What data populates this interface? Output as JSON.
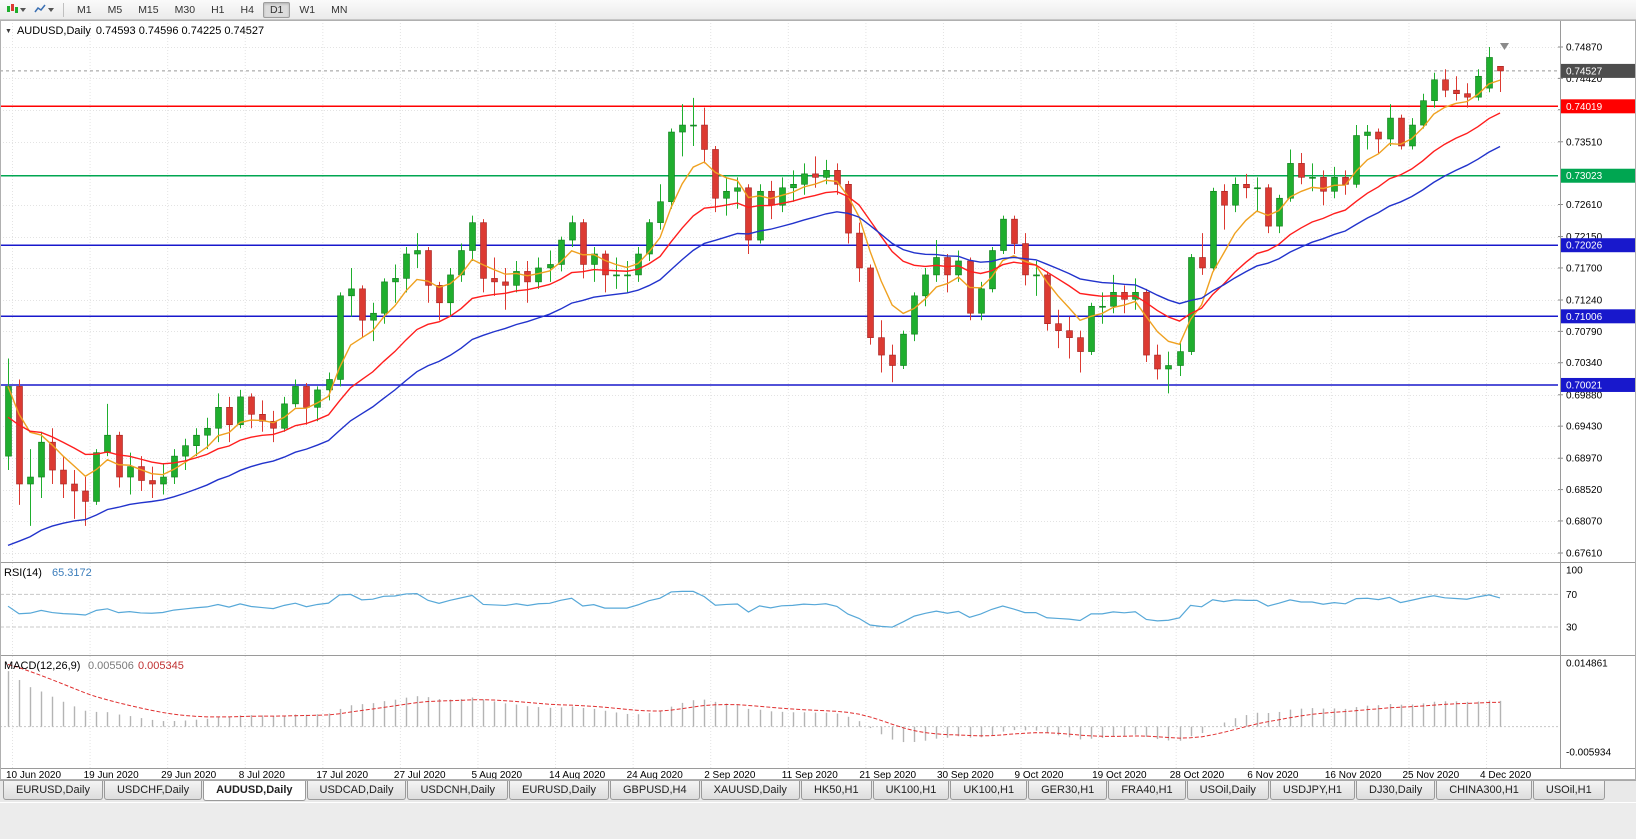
{
  "toolbar": {
    "timeframes": [
      "M1",
      "M5",
      "M15",
      "M30",
      "H1",
      "H4",
      "D1",
      "W1",
      "MN"
    ],
    "active_timeframe": "D1"
  },
  "chart": {
    "symbol_period": "AUDUSD,Daily",
    "ohlc": "0.74593 0.74596 0.74225 0.74527"
  },
  "indicators": {
    "rsi": {
      "name": "RSI(14)",
      "value": "65.3172"
    },
    "macd": {
      "name": "MACD(12,26,9)",
      "value_main": "0.005506",
      "value_signal": "0.005345"
    }
  },
  "tab_bar": {
    "active_index": 2,
    "tabs": [
      "EURUSD,Daily",
      "USDCHF,Daily",
      "AUDUSD,Daily",
      "USDCAD,Daily",
      "USDCNH,Daily",
      "EURUSD,Daily",
      "GBPUSD,H4",
      "XAUUSD,Daily",
      "HK50,H1",
      "UK100,H1",
      "UK100,H1",
      "GER30,H1",
      "FRA40,H1",
      "USOil,Daily",
      "USDJPY,H1",
      "DJ30,Daily",
      "CHINA300,H1",
      "USOil,H1"
    ]
  },
  "chart_data": {
    "type": "candlestick",
    "symbol": "AUDUSD",
    "timeframe": "Daily",
    "title": "AUDUSD,Daily 0.74593 0.74596 0.74225 0.74527",
    "y_axis_labels": [
      "0.74870",
      "0.74420",
      "0.73970",
      "0.73510",
      "0.72610",
      "0.72150",
      "0.71700",
      "0.71240",
      "0.70790",
      "0.70340",
      "0.69880",
      "0.69430",
      "0.68970",
      "0.68520",
      "0.68070",
      "0.67610"
    ],
    "x_labels": [
      "10 Jun 2020",
      "19 Jun 2020",
      "29 Jun 2020",
      "8 Jul 2020",
      "17 Jul 2020",
      "27 Jul 2020",
      "5 Aug 2020",
      "14 Aug 2020",
      "24 Aug 2020",
      "2 Sep 2020",
      "11 Sep 2020",
      "21 Sep 2020",
      "30 Sep 2020",
      "9 Oct 2020",
      "19 Oct 2020",
      "28 Oct 2020",
      "6 Nov 2020",
      "16 Nov 2020",
      "25 Nov 2020",
      "4 Dec 2020"
    ],
    "current_price": 0.74527,
    "current_price_label": "0.74527",
    "hlines": [
      {
        "value": 0.74019,
        "label": "0.74019",
        "color": "#ff0000"
      },
      {
        "value": 0.73023,
        "label": "0.73023",
        "color": "#00a651"
      },
      {
        "value": 0.72026,
        "label": "0.72026",
        "color": "#1818cc"
      },
      {
        "value": 0.71006,
        "label": "0.71006",
        "color": "#1818cc"
      },
      {
        "value": 0.70021,
        "label": "0.70021",
        "color": "#1818cc"
      }
    ],
    "colors": {
      "up": "#1fae2e",
      "up_border": "#0e7a1a",
      "down": "#dc3a32",
      "down_border": "#a02020",
      "current_box": "#4d4d4d",
      "grid": "#e3e3e3",
      "separator": "#9a9a9a"
    },
    "moving_averages": [
      {
        "period": 6,
        "color": "#efa120",
        "seed": 0.7
      },
      {
        "period": 16,
        "color": "#ff1e1e",
        "seed": 0.695
      },
      {
        "period": 28,
        "color": "#2233cc",
        "seed": 0.6755
      }
    ],
    "rsi": {
      "period": 14,
      "color": "#57a8d8",
      "scale_labels": [
        "100",
        "70",
        "30"
      ],
      "level_lines": [
        70,
        30
      ],
      "seed_gain": 0.003,
      "seed_loss": 0.0024
    },
    "macd": {
      "fast": 12,
      "slow": 26,
      "signal": 9,
      "hist_color": "#b4b4b4",
      "signal_color": "#e03030",
      "seed_fast": 0.7,
      "seed_slow": 0.686,
      "seed_signal": 0.0149,
      "scale_top": "0.014861",
      "scale_bottom": "-0.005934"
    },
    "candles": [
      [
        0.69,
        0.704,
        0.688,
        0.7
      ],
      [
        0.7,
        0.701,
        0.683,
        0.686
      ],
      [
        0.686,
        0.691,
        0.68,
        0.687
      ],
      [
        0.687,
        0.6935,
        0.684,
        0.692
      ],
      [
        0.692,
        0.694,
        0.686,
        0.688
      ],
      [
        0.688,
        0.69,
        0.684,
        0.686
      ],
      [
        0.686,
        0.688,
        0.681,
        0.685
      ],
      [
        0.685,
        0.687,
        0.68,
        0.6835
      ],
      [
        0.6835,
        0.691,
        0.683,
        0.6905
      ],
      [
        0.6905,
        0.6975,
        0.69,
        0.693
      ],
      [
        0.693,
        0.6935,
        0.6855,
        0.687
      ],
      [
        0.687,
        0.6905,
        0.6845,
        0.6885
      ],
      [
        0.6885,
        0.69,
        0.685,
        0.6865
      ],
      [
        0.6865,
        0.6885,
        0.684,
        0.686
      ],
      [
        0.686,
        0.689,
        0.6845,
        0.687
      ],
      [
        0.687,
        0.691,
        0.686,
        0.69
      ],
      [
        0.69,
        0.6925,
        0.688,
        0.6915
      ],
      [
        0.6915,
        0.694,
        0.69,
        0.693
      ],
      [
        0.693,
        0.6955,
        0.691,
        0.694
      ],
      [
        0.694,
        0.699,
        0.692,
        0.697
      ],
      [
        0.697,
        0.6985,
        0.692,
        0.6945
      ],
      [
        0.6945,
        0.6995,
        0.694,
        0.6985
      ],
      [
        0.6985,
        0.699,
        0.694,
        0.696
      ],
      [
        0.696,
        0.698,
        0.6935,
        0.695
      ],
      [
        0.695,
        0.6965,
        0.692,
        0.694
      ],
      [
        0.694,
        0.6985,
        0.6935,
        0.6975
      ],
      [
        0.6975,
        0.701,
        0.697,
        0.7
      ],
      [
        0.7,
        0.7005,
        0.6945,
        0.697
      ],
      [
        0.697,
        0.7,
        0.695,
        0.6995
      ],
      [
        0.6995,
        0.702,
        0.698,
        0.701
      ],
      [
        0.701,
        0.7135,
        0.7,
        0.713
      ],
      [
        0.713,
        0.717,
        0.71,
        0.714
      ],
      [
        0.714,
        0.7145,
        0.707,
        0.7095
      ],
      [
        0.7095,
        0.712,
        0.7065,
        0.7105
      ],
      [
        0.7105,
        0.7155,
        0.709,
        0.715
      ],
      [
        0.715,
        0.7175,
        0.712,
        0.7155
      ],
      [
        0.7155,
        0.72,
        0.7135,
        0.719
      ],
      [
        0.719,
        0.722,
        0.717,
        0.7195
      ],
      [
        0.7195,
        0.72,
        0.712,
        0.7145
      ],
      [
        0.7145,
        0.715,
        0.7095,
        0.712
      ],
      [
        0.712,
        0.717,
        0.71,
        0.716
      ],
      [
        0.716,
        0.7205,
        0.715,
        0.7195
      ],
      [
        0.7195,
        0.7245,
        0.718,
        0.7235
      ],
      [
        0.7235,
        0.724,
        0.7135,
        0.7155
      ],
      [
        0.7155,
        0.7185,
        0.713,
        0.715
      ],
      [
        0.715,
        0.717,
        0.711,
        0.7145
      ],
      [
        0.7145,
        0.718,
        0.7135,
        0.7165
      ],
      [
        0.7165,
        0.718,
        0.712,
        0.715
      ],
      [
        0.715,
        0.7185,
        0.714,
        0.717
      ],
      [
        0.717,
        0.7195,
        0.715,
        0.7175
      ],
      [
        0.7175,
        0.7215,
        0.7165,
        0.721
      ],
      [
        0.721,
        0.7245,
        0.72,
        0.7235
      ],
      [
        0.7235,
        0.724,
        0.7155,
        0.7175
      ],
      [
        0.7175,
        0.72,
        0.715,
        0.719
      ],
      [
        0.719,
        0.7195,
        0.7135,
        0.716
      ],
      [
        0.716,
        0.7185,
        0.714,
        0.716
      ],
      [
        0.716,
        0.718,
        0.7135,
        0.716
      ],
      [
        0.716,
        0.72,
        0.715,
        0.719
      ],
      [
        0.719,
        0.724,
        0.718,
        0.7235
      ],
      [
        0.7235,
        0.729,
        0.7225,
        0.7265
      ],
      [
        0.7265,
        0.737,
        0.7255,
        0.7365
      ],
      [
        0.7365,
        0.7405,
        0.733,
        0.7375
      ],
      [
        0.7375,
        0.7414,
        0.7345,
        0.7375
      ],
      [
        0.7375,
        0.74,
        0.732,
        0.734
      ],
      [
        0.734,
        0.7345,
        0.725,
        0.727
      ],
      [
        0.727,
        0.73,
        0.7245,
        0.728
      ],
      [
        0.728,
        0.73,
        0.7255,
        0.7285
      ],
      [
        0.7285,
        0.729,
        0.719,
        0.721
      ],
      [
        0.721,
        0.729,
        0.7205,
        0.728
      ],
      [
        0.728,
        0.7295,
        0.724,
        0.726
      ],
      [
        0.726,
        0.73,
        0.725,
        0.7285
      ],
      [
        0.7285,
        0.731,
        0.7265,
        0.729
      ],
      [
        0.729,
        0.732,
        0.7275,
        0.7305
      ],
      [
        0.7305,
        0.733,
        0.7285,
        0.73
      ],
      [
        0.73,
        0.7325,
        0.729,
        0.731
      ],
      [
        0.731,
        0.732,
        0.7275,
        0.729
      ],
      [
        0.729,
        0.7295,
        0.7205,
        0.722
      ],
      [
        0.722,
        0.7235,
        0.715,
        0.717
      ],
      [
        0.717,
        0.7175,
        0.706,
        0.707
      ],
      [
        0.707,
        0.7095,
        0.702,
        0.7045
      ],
      [
        0.7045,
        0.706,
        0.7006,
        0.703
      ],
      [
        0.703,
        0.708,
        0.7025,
        0.7075
      ],
      [
        0.7075,
        0.7135,
        0.7065,
        0.713
      ],
      [
        0.713,
        0.717,
        0.7115,
        0.716
      ],
      [
        0.716,
        0.721,
        0.715,
        0.7185
      ],
      [
        0.7185,
        0.719,
        0.7135,
        0.716
      ],
      [
        0.716,
        0.7195,
        0.715,
        0.718
      ],
      [
        0.718,
        0.7185,
        0.7095,
        0.7105
      ],
      [
        0.7105,
        0.715,
        0.7095,
        0.714
      ],
      [
        0.714,
        0.72,
        0.7135,
        0.7195
      ],
      [
        0.7195,
        0.7245,
        0.719,
        0.724
      ],
      [
        0.724,
        0.7245,
        0.719,
        0.7205
      ],
      [
        0.7205,
        0.722,
        0.7145,
        0.716
      ],
      [
        0.716,
        0.718,
        0.713,
        0.716
      ],
      [
        0.716,
        0.7165,
        0.708,
        0.709
      ],
      [
        0.709,
        0.711,
        0.7055,
        0.708
      ],
      [
        0.708,
        0.71,
        0.704,
        0.707
      ],
      [
        0.707,
        0.708,
        0.702,
        0.705
      ],
      [
        0.705,
        0.712,
        0.7045,
        0.7115
      ],
      [
        0.7115,
        0.7135,
        0.709,
        0.7115
      ],
      [
        0.7115,
        0.716,
        0.7105,
        0.7135
      ],
      [
        0.7135,
        0.7145,
        0.7105,
        0.7125
      ],
      [
        0.7125,
        0.7155,
        0.711,
        0.7135
      ],
      [
        0.7135,
        0.714,
        0.7035,
        0.7045
      ],
      [
        0.7045,
        0.706,
        0.701,
        0.7025
      ],
      [
        0.7025,
        0.705,
        0.699,
        0.703
      ],
      [
        0.703,
        0.7065,
        0.7015,
        0.705
      ],
      [
        0.705,
        0.719,
        0.7045,
        0.7185
      ],
      [
        0.7185,
        0.722,
        0.716,
        0.717
      ],
      [
        0.717,
        0.7285,
        0.7165,
        0.728
      ],
      [
        0.728,
        0.729,
        0.7225,
        0.726
      ],
      [
        0.726,
        0.73,
        0.725,
        0.729
      ],
      [
        0.729,
        0.7305,
        0.727,
        0.7285
      ],
      [
        0.7285,
        0.73,
        0.725,
        0.7285
      ],
      [
        0.7285,
        0.729,
        0.722,
        0.723
      ],
      [
        0.723,
        0.7275,
        0.722,
        0.727
      ],
      [
        0.727,
        0.734,
        0.7265,
        0.732
      ],
      [
        0.732,
        0.7335,
        0.729,
        0.73
      ],
      [
        0.73,
        0.732,
        0.728,
        0.73
      ],
      [
        0.73,
        0.731,
        0.726,
        0.728
      ],
      [
        0.728,
        0.7315,
        0.727,
        0.73
      ],
      [
        0.73,
        0.731,
        0.7275,
        0.729
      ],
      [
        0.729,
        0.7375,
        0.7285,
        0.736
      ],
      [
        0.736,
        0.7375,
        0.734,
        0.7365
      ],
      [
        0.7365,
        0.737,
        0.7335,
        0.7355
      ],
      [
        0.7355,
        0.7405,
        0.7345,
        0.7385
      ],
      [
        0.7385,
        0.739,
        0.734,
        0.7345
      ],
      [
        0.7345,
        0.7385,
        0.734,
        0.7375
      ],
      [
        0.7375,
        0.742,
        0.737,
        0.741
      ],
      [
        0.741,
        0.745,
        0.74,
        0.744
      ],
      [
        0.744,
        0.7455,
        0.7415,
        0.7425
      ],
      [
        0.7425,
        0.7445,
        0.741,
        0.742
      ],
      [
        0.742,
        0.7435,
        0.74,
        0.7415
      ],
      [
        0.7415,
        0.7455,
        0.741,
        0.7445
      ],
      [
        0.7428,
        0.7487,
        0.7422,
        0.7472
      ],
      [
        0.74593,
        0.74596,
        0.74225,
        0.74527
      ]
    ]
  }
}
